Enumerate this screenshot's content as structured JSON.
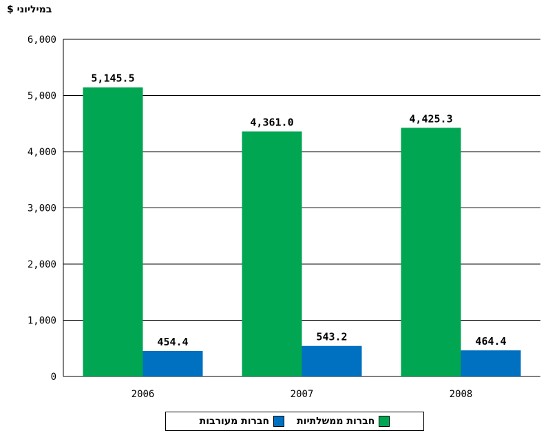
{
  "chart_data": {
    "type": "bar",
    "unit_label": "במיליוני $",
    "categories": [
      "2006",
      "2007",
      "2008"
    ],
    "series": [
      {
        "name": "חברות ממשלתיות",
        "color": "#00a651",
        "values": [
          5145.5,
          4361.0,
          4425.3
        ],
        "labels": [
          "5,145.5",
          "4,361.0",
          "4,425.3"
        ]
      },
      {
        "name": "חברות מעורבות",
        "color": "#0070c0",
        "values": [
          454.4,
          543.2,
          464.4
        ],
        "labels": [
          "454.4",
          "543.2",
          "464.4"
        ]
      }
    ],
    "yticks": [
      "0",
      "1,000",
      "2,000",
      "3,000",
      "4,000",
      "5,000",
      "6,000"
    ],
    "ylim": [
      0,
      6000
    ],
    "grid": true,
    "legend_position": "bottom"
  }
}
